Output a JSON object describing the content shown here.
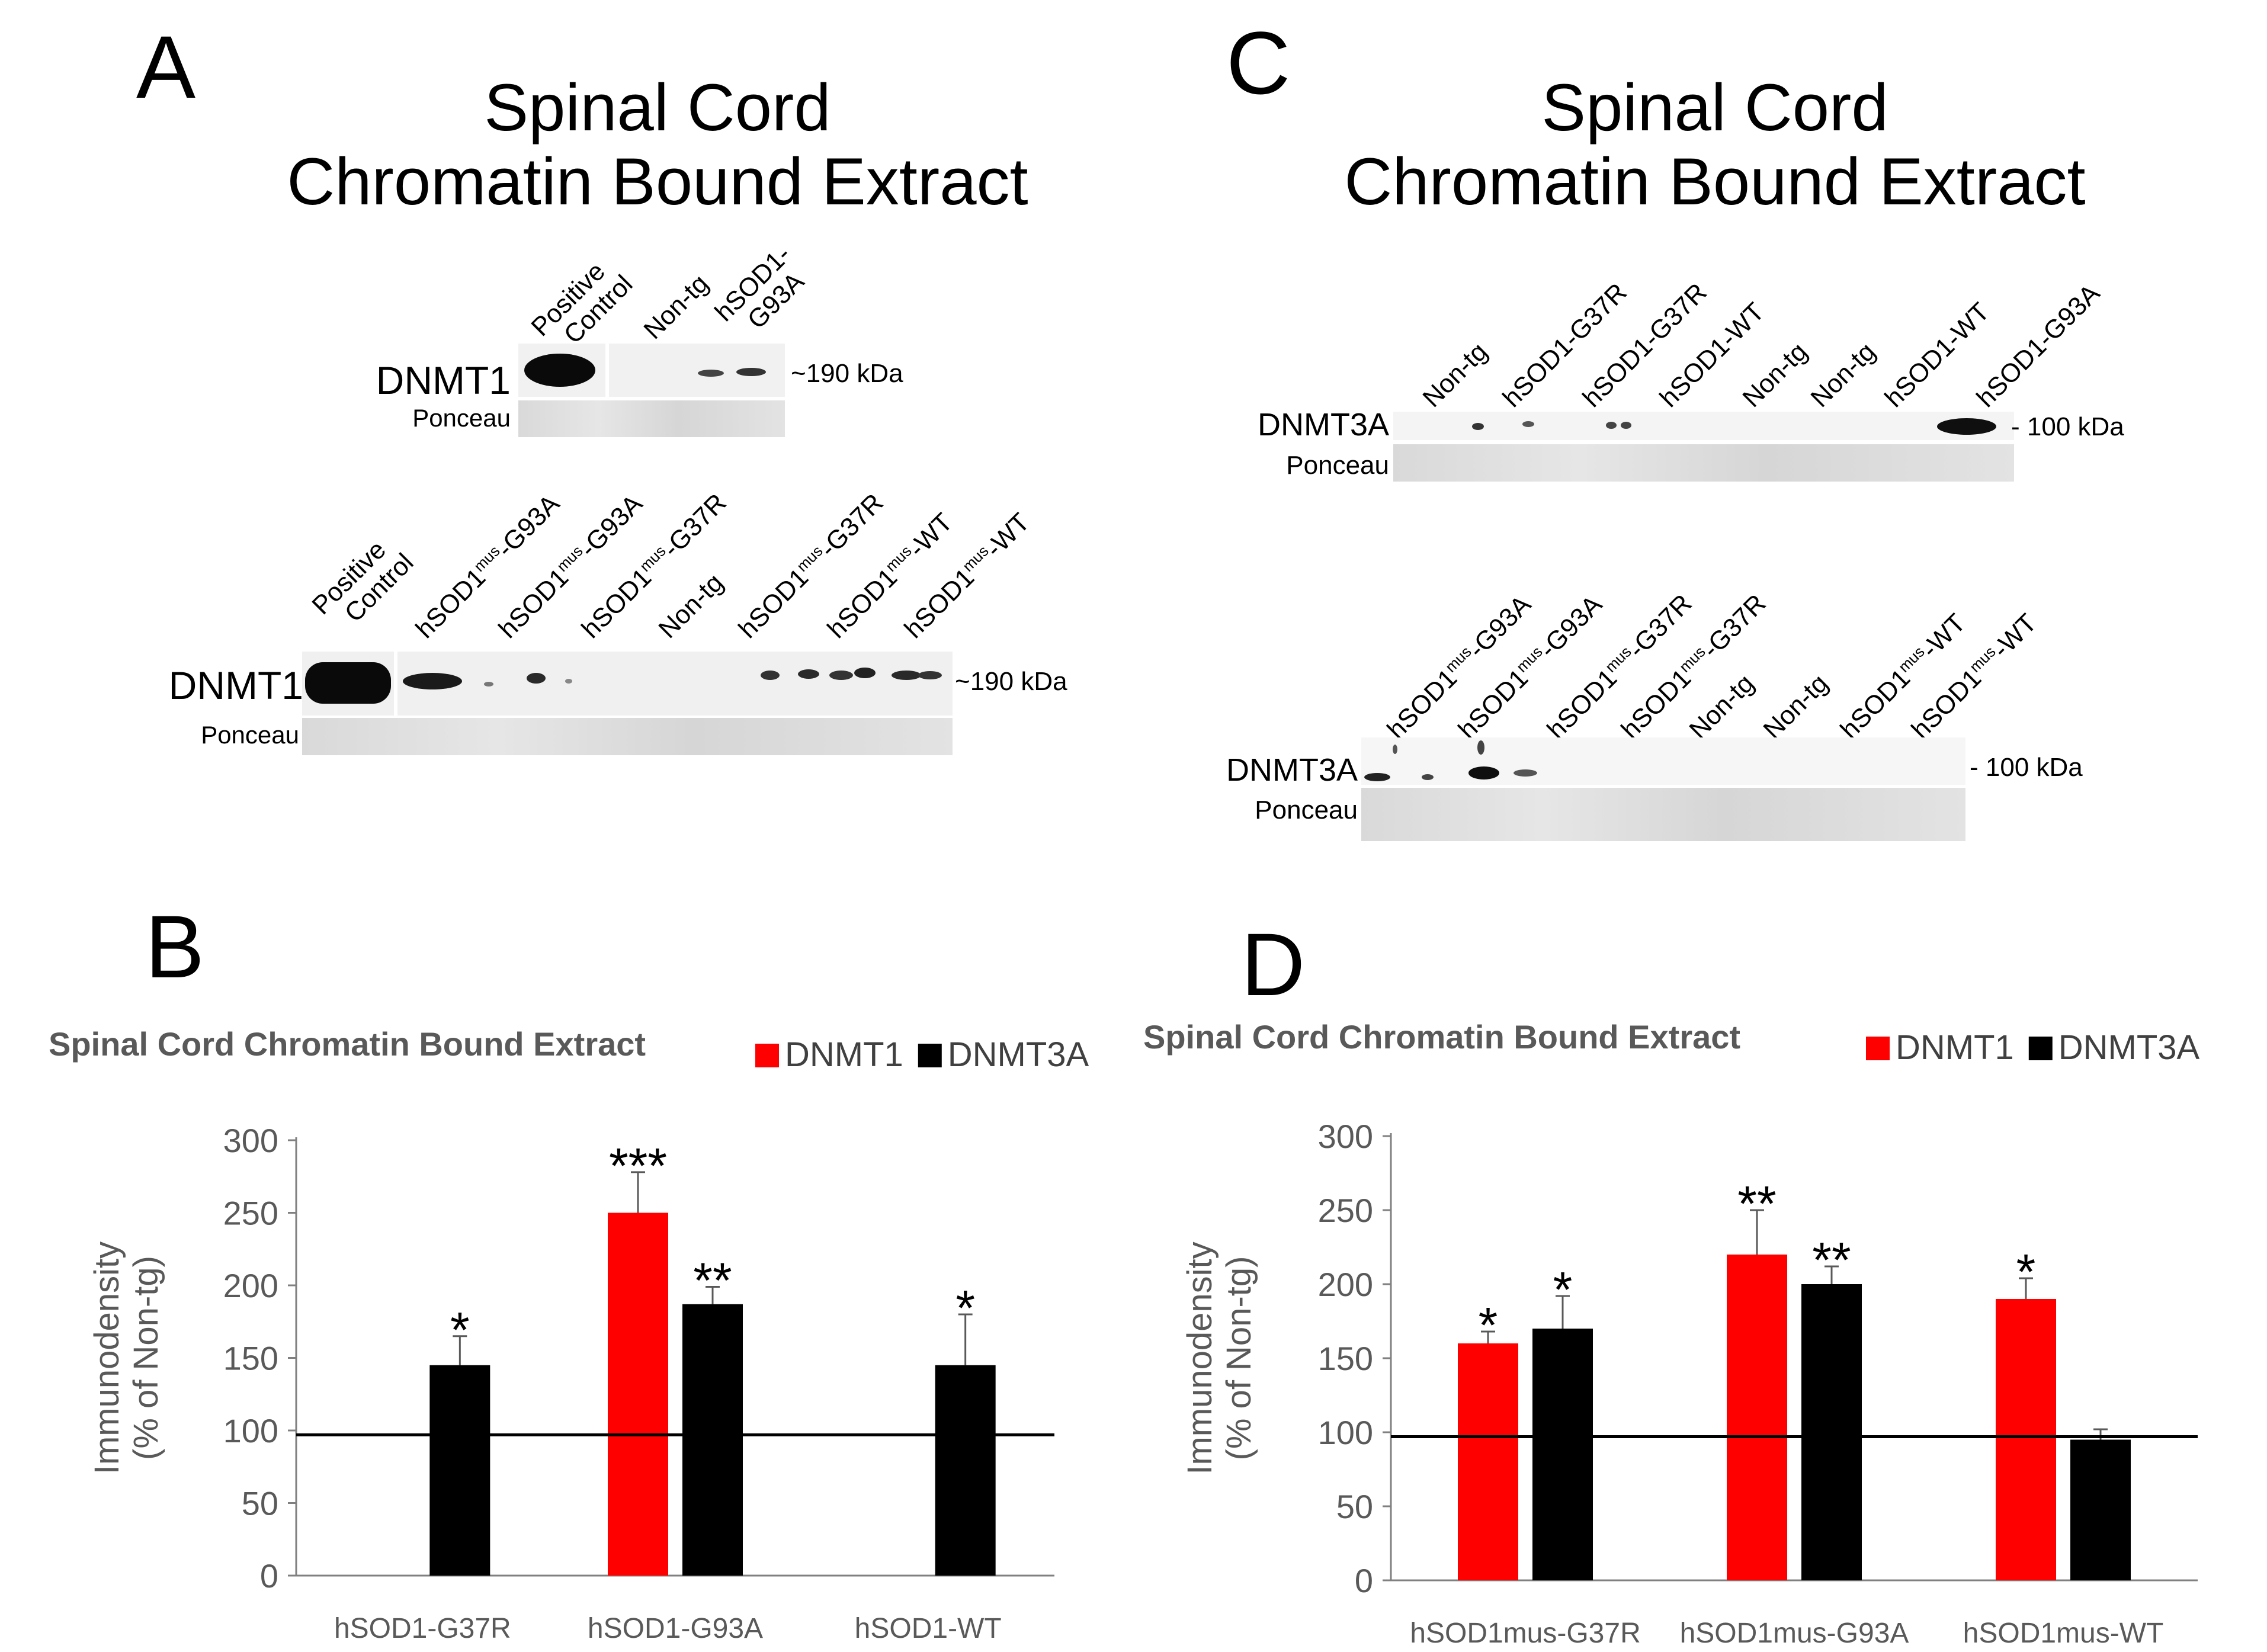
{
  "panels": {
    "A": {
      "letter": "A",
      "title_line1": "Spinal Cord",
      "title_line2": "Chromatin Bound Extract",
      "blot1": {
        "lanes": [
          [
            "Positive",
            "Control"
          ],
          [
            "Non-tg"
          ],
          [
            "hSOD1-",
            "G93A"
          ]
        ],
        "protein": "DNMT1",
        "loading": "Ponceau",
        "marker": "~190 kDa"
      },
      "blot2": {
        "lanes": [
          "Positive Control",
          "hSOD1mus-G93A",
          "hSOD1mus-G93A",
          "hSOD1mus-G37R",
          "Non-tg",
          "hSOD1mus-G37R",
          "hSOD1mus-WT",
          "hSOD1mus-WT"
        ],
        "protein": "DNMT1",
        "loading": "Ponceau",
        "marker": "~190 kDa"
      }
    },
    "C": {
      "letter": "C",
      "title_line1": "Spinal Cord",
      "title_line2": "Chromatin Bound Extract",
      "blot1": {
        "lanes": [
          "Non-tg",
          "hSOD1-G37R",
          "hSOD1-G37R",
          "hSOD1-WT",
          "Non-tg",
          "Non-tg",
          "hSOD1-WT",
          "hSOD1-G93A"
        ],
        "protein": "DNMT3A",
        "loading": "Ponceau",
        "marker": "- 100 kDa"
      },
      "blot2": {
        "lanes": [
          "hSOD1mus-G93A",
          "hSOD1mus-G93A",
          "hSOD1mus-G37R",
          "hSOD1mus-G37R",
          "Non-tg",
          "Non-tg",
          "hSOD1mus-WT",
          "hSOD1mus-WT"
        ],
        "protein": "DNMT3A",
        "loading": "Ponceau",
        "marker": "- 100 kDa"
      }
    },
    "B": {
      "letter": "B"
    },
    "D": {
      "letter": "D"
    }
  },
  "chart_data": [
    {
      "panel": "B",
      "type": "bar",
      "title": "Spinal Cord Chromatin Bound Extract",
      "categories": [
        "hSOD1-G37R",
        "hSOD1-G93A",
        "hSOD1-WT"
      ],
      "series": [
        {
          "name": "DNMT1",
          "color": "#ff0000",
          "values": [
            null,
            250,
            null
          ],
          "errors": [
            null,
            28,
            null
          ],
          "significance": [
            "",
            "***",
            ""
          ]
        },
        {
          "name": "DNMT3A",
          "color": "#000000",
          "values": [
            145,
            187,
            145
          ],
          "errors": [
            20,
            12,
            35
          ],
          "significance": [
            "*",
            "**",
            "*"
          ]
        }
      ],
      "ylabel_line1": "Immunodensity",
      "ylabel_line2": "(% of Non-tg)",
      "ylim": [
        0,
        300
      ],
      "yticks": [
        0,
        50,
        100,
        150,
        200,
        250,
        300
      ],
      "reference_line": 97,
      "legend": "top-right"
    },
    {
      "panel": "D",
      "type": "bar",
      "title": "Spinal Cord Chromatin Bound Extract",
      "categories": [
        "hSOD1mus-G37R",
        "hSOD1mus-G93A",
        "hSOD1mus-WT"
      ],
      "series": [
        {
          "name": "DNMT1",
          "color": "#ff0000",
          "values": [
            160,
            220,
            190
          ],
          "errors": [
            8,
            30,
            14
          ],
          "significance": [
            "*",
            "**",
            "*"
          ]
        },
        {
          "name": "DNMT3A",
          "color": "#000000",
          "values": [
            170,
            200,
            95
          ],
          "errors": [
            22,
            12,
            7
          ],
          "significance": [
            "*",
            "**",
            ""
          ]
        }
      ],
      "ylabel_line1": "Immunodensity",
      "ylabel_line2": "(% of Non-tg)",
      "ylim": [
        0,
        300
      ],
      "yticks": [
        0,
        50,
        100,
        150,
        200,
        250,
        300
      ],
      "reference_line": 97,
      "legend": "top-right"
    }
  ]
}
